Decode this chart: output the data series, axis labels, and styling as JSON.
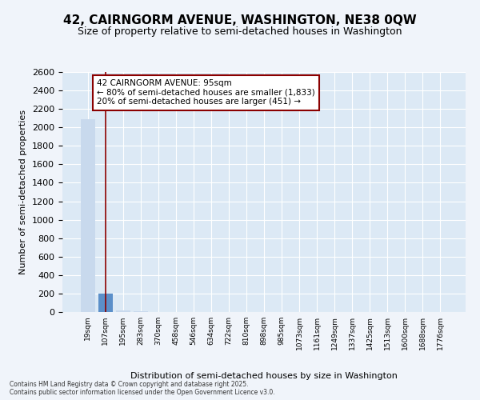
{
  "title": "42, CAIRNGORM AVENUE, WASHINGTON, NE38 0QW",
  "subtitle": "Size of property relative to semi-detached houses in Washington",
  "xlabel": "Distribution of semi-detached houses by size in Washington",
  "ylabel": "Number of semi-detached properties",
  "annotation_text": "42 CAIRNGORM AVENUE: 95sqm\n← 80% of semi-detached houses are smaller (1,833)\n20% of semi-detached houses are larger (451) →",
  "categories": [
    "19sqm",
    "107sqm",
    "195sqm",
    "283sqm",
    "370sqm",
    "458sqm",
    "546sqm",
    "634sqm",
    "722sqm",
    "810sqm",
    "898sqm",
    "985sqm",
    "1073sqm",
    "1161sqm",
    "1249sqm",
    "1337sqm",
    "1425sqm",
    "1513sqm",
    "1600sqm",
    "1688sqm",
    "1776sqm"
  ],
  "bar_heights": [
    2090,
    200,
    15,
    5,
    3,
    2,
    1,
    1,
    1,
    1,
    1,
    1,
    1,
    1,
    1,
    1,
    1,
    1,
    1,
    1,
    1
  ],
  "highlight_bar_index": 1,
  "bar_color": "#c8d9ed",
  "highlight_bar_color": "#5b8fc9",
  "vline_color": "#8b0000",
  "vline_index": 1,
  "ylim": [
    0,
    2600
  ],
  "yticks": [
    0,
    200,
    400,
    600,
    800,
    1000,
    1200,
    1400,
    1600,
    1800,
    2000,
    2200,
    2400,
    2600
  ],
  "background_color": "#dce9f5",
  "grid_color": "#ffffff",
  "fig_background": "#f0f4fa",
  "footnote1": "Contains HM Land Registry data © Crown copyright and database right 2025.",
  "footnote2": "Contains public sector information licensed under the Open Government Licence v3.0."
}
